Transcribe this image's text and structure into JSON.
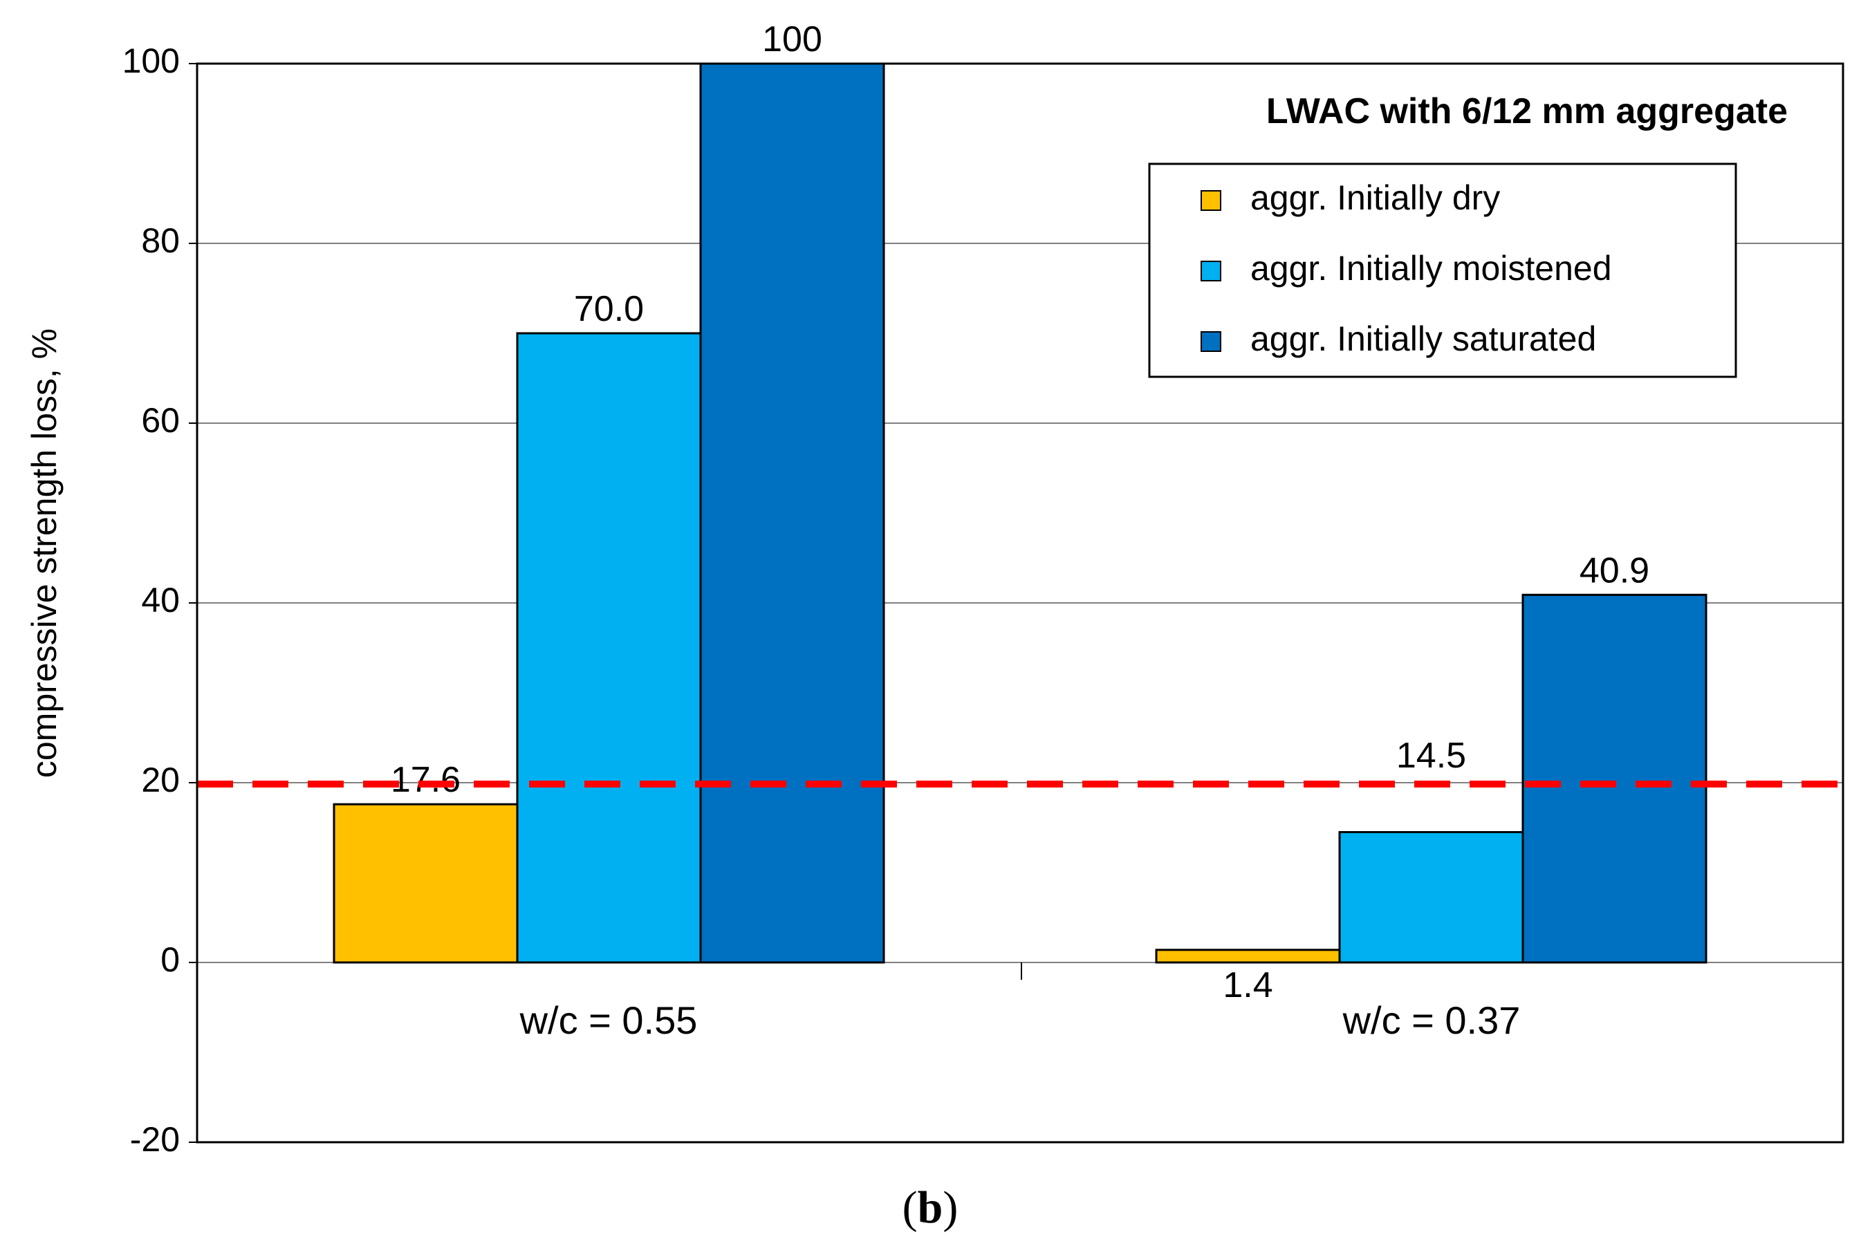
{
  "chart_data": {
    "type": "bar",
    "title": "LWAC with 6/12 mm aggregate",
    "ylabel": "compressive  strength loss, %",
    "xlabel": "",
    "categories": [
      "w/c = 0.55",
      "w/c = 0.37"
    ],
    "series": [
      {
        "name": "aggr. Initially dry",
        "values": [
          17.6,
          1.4
        ],
        "labels": [
          "17.6",
          "1.4"
        ],
        "color": "#FFC000"
      },
      {
        "name": "aggr. Initially moistened",
        "values": [
          70.0,
          14.5
        ],
        "labels": [
          "70.0",
          "14.5"
        ],
        "color": "#00B0F0"
      },
      {
        "name": "aggr. Initially saturated",
        "values": [
          100,
          40.9
        ],
        "labels": [
          "100",
          "40.9"
        ],
        "color": "#0070C0"
      }
    ],
    "ylim": [
      -20,
      100
    ],
    "yticks": [
      -20,
      0,
      20,
      40,
      60,
      80,
      100
    ],
    "reference_line": {
      "value": 20,
      "color": "#FF0000",
      "style": "dashed"
    },
    "grid": true,
    "legend_position": "top-right"
  },
  "caption": {
    "open": "(",
    "letter": "b",
    "close": ")"
  }
}
